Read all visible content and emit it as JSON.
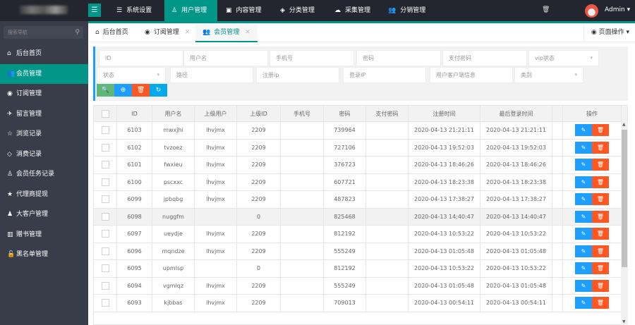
{
  "header": {
    "toggle_icon": "menu-fold-icon",
    "nav": [
      {
        "label": "系统设置",
        "icon": "☰"
      },
      {
        "label": "用户管理",
        "icon": "♙",
        "active": true
      },
      {
        "label": "内容管理",
        "icon": "▣"
      },
      {
        "label": "分类管理",
        "icon": "◈"
      },
      {
        "label": "采集管理",
        "icon": "☁"
      },
      {
        "label": "分销管理",
        "icon": "👥"
      }
    ],
    "clear_icon": "trash-icon",
    "user": "Admin",
    "user_caret": "▾"
  },
  "sidebar": {
    "search_placeholder": "搜索导航",
    "items": [
      {
        "label": "后台首页",
        "icon": "⌂"
      },
      {
        "label": "会员管理",
        "icon": "👥",
        "active": true
      },
      {
        "label": "订阅管理",
        "icon": "◉"
      },
      {
        "label": "留言管理",
        "icon": "✈"
      },
      {
        "label": "浏览记录",
        "icon": "☆"
      },
      {
        "label": "消费记录",
        "icon": "◇"
      },
      {
        "label": "会员任务记录",
        "icon": "♙"
      },
      {
        "label": "代理商提现",
        "icon": "★"
      },
      {
        "label": "大客户管理",
        "icon": "♟"
      },
      {
        "label": "赠书管理",
        "icon": "▥"
      },
      {
        "label": "黑名单管理",
        "icon": "🔓"
      }
    ]
  },
  "tabs": [
    {
      "label": "后台首页",
      "icon": "⌂",
      "closable": false
    },
    {
      "label": "订阅管理",
      "icon": "◉",
      "closable": true
    },
    {
      "label": "会员管理",
      "icon": "👥",
      "closable": true,
      "active": true
    }
  ],
  "tab_close": "✕",
  "page_ops": "◉ 页面操作 ▾",
  "filters": {
    "row1": [
      "ID",
      "用户名",
      "手机号",
      "密码",
      "支付密码",
      "vip状态"
    ],
    "row2": [
      "状态",
      "路径",
      "注册ip",
      "登录IP",
      "用户客户端信息",
      "类别"
    ],
    "dropdown_arrow": "▾"
  },
  "buttons": [
    {
      "name": "search",
      "icon": "🔍",
      "color": "#5fb878"
    },
    {
      "name": "add",
      "icon": "⊕",
      "color": "#1e9fff"
    },
    {
      "name": "delete",
      "icon": "🗑",
      "color": "#ff5722"
    },
    {
      "name": "refresh",
      "icon": "↻",
      "color": "#01aaed"
    }
  ],
  "table": {
    "columns": [
      "",
      "ID",
      "用户名",
      "上级用户",
      "上级ID",
      "手机号",
      "密码",
      "支付密码",
      "注册时间",
      "最后登录时间",
      "",
      "操作"
    ],
    "rows": [
      [
        "6103",
        "mwxjhi",
        "lhvjmx",
        "2209",
        "",
        "739964",
        "",
        "2020-04-13 21:21:11",
        "2020-04-13 21:21:11"
      ],
      [
        "6102",
        "tvzoez",
        "lhvjmx",
        "2209",
        "",
        "727106",
        "",
        "2020-04-13 19:52:03",
        "2020-04-13 19:52:03"
      ],
      [
        "6101",
        "fwxieu",
        "lhvjmx",
        "2209",
        "",
        "376723",
        "",
        "2020-04-13 18:46:26",
        "2020-04-13 18:46:26"
      ],
      [
        "6100",
        "pscxxc",
        "lhvjmx",
        "2209",
        "",
        "607721",
        "",
        "2020-04-13 18:23:38",
        "2020-04-13 18:23:38"
      ],
      [
        "6099",
        "jpbqbg",
        "lhvjmx",
        "2209",
        "",
        "487823",
        "",
        "2020-04-13 17:38:27",
        "2020-04-13 17:38:27"
      ],
      [
        "6098",
        "nuggfm",
        "",
        "0",
        "",
        "825468",
        "",
        "2020-04-13 14:40:47",
        "2020-04-13 14:40:47"
      ],
      [
        "6097",
        "ueydje",
        "lhvjmx",
        "2209",
        "",
        "812192",
        "",
        "2020-04-13 10:53:22",
        "2020-04-13 10:53:22"
      ],
      [
        "6096",
        "mqndze",
        "lhvjmx",
        "2209",
        "",
        "555249",
        "",
        "2020-04-13 01:05:48",
        "2020-04-13 01:05:48"
      ],
      [
        "6095",
        "upmlsp",
        "",
        "0",
        "",
        "812192",
        "",
        "2020-04-13 10:53:22",
        "2020-04-13 10:53:22"
      ],
      [
        "6094",
        "vgmiqz",
        "lhvjmx",
        "2209",
        "",
        "555249",
        "",
        "2020-04-13 01:05:48",
        "2020-04-13 01:05:48"
      ],
      [
        "6093",
        "kjbbas",
        "lhvjmx",
        "2209",
        "",
        "709013",
        "",
        "2020-04-13 00:54:11",
        "2020-04-13 00:54:11"
      ]
    ],
    "highlighted_row": "6098",
    "edit_icon": "✎",
    "delete_icon": "🗑",
    "edit_color": "#1e9fff",
    "delete_color": "#ff5722"
  },
  "colors": {
    "primary": "#009688",
    "topbar": "#23262e",
    "sidebar": "#393d49"
  }
}
